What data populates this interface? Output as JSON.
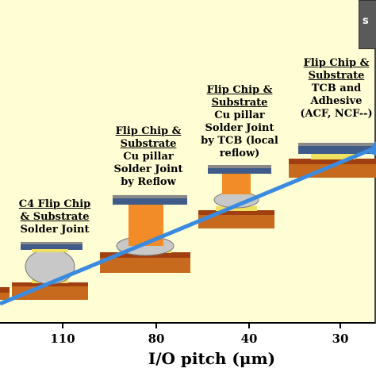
{
  "colors": {
    "background": "#fffdd3",
    "trend_line": "#3a8be0",
    "substrate": "#c86a1e",
    "substrate_base": "#a04010",
    "chip": "#3f5b8a",
    "chip_top": "#8a8a8a",
    "pillar": "#f28c28",
    "solder": "#c8c8c8",
    "pad": "#f0e060"
  },
  "chart_data": {
    "type": "diagram",
    "xlabel": "I/O pitch (μm)",
    "x_ticks": [
      "110",
      "80",
      "40",
      "30"
    ],
    "trend": "increasing density as I/O pitch decreases"
  },
  "labels": {
    "c4": {
      "title": [
        "C4 Flip Chip",
        "& Substrate"
      ],
      "body": [
        "Solder Joint"
      ]
    },
    "reflow": {
      "title": [
        "Flip Chip &",
        "Substrate"
      ],
      "body": [
        "Cu pillar",
        "Solder Joint",
        "by Reflow"
      ]
    },
    "tcb": {
      "title": [
        "Flip Chip &",
        "Substrate"
      ],
      "body": [
        "Cu pillar",
        "Solder Joint",
        "by TCB (local",
        "reflow)"
      ]
    },
    "adhesive": {
      "title": [
        "Flip Chip &",
        "Substrate"
      ],
      "body": [
        "TCB and",
        "Adhesive",
        "(ACF, NCF--)"
      ]
    }
  },
  "legend_text": "s"
}
